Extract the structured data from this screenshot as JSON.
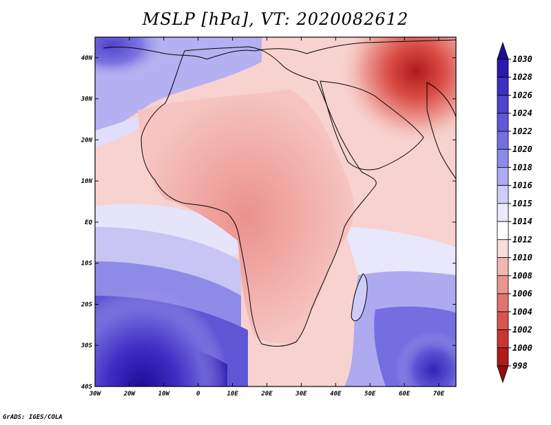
{
  "title": "MSLP [hPa], VT: 2020082612",
  "credit": "GrADS: IGES/COLA",
  "map": {
    "region": "Africa",
    "projection": "latlon",
    "lon_range": [
      -30,
      75
    ],
    "lat_range": [
      -40,
      45
    ],
    "lat_ticks": [
      {
        "lat": 40,
        "label": "40N"
      },
      {
        "lat": 30,
        "label": "30N"
      },
      {
        "lat": 20,
        "label": "20N"
      },
      {
        "lat": 10,
        "label": "10N"
      },
      {
        "lat": 0,
        "label": "EQ"
      },
      {
        "lat": -10,
        "label": "10S"
      },
      {
        "lat": -20,
        "label": "20S"
      },
      {
        "lat": -30,
        "label": "30S"
      },
      {
        "lat": -40,
        "label": "40S"
      }
    ],
    "lon_ticks": [
      {
        "lon": -30,
        "label": "30W"
      },
      {
        "lon": -20,
        "label": "20W"
      },
      {
        "lon": -10,
        "label": "10W"
      },
      {
        "lon": 0,
        "label": "0"
      },
      {
        "lon": 10,
        "label": "10E"
      },
      {
        "lon": 20,
        "label": "20E"
      },
      {
        "lon": 30,
        "label": "30E"
      },
      {
        "lon": 40,
        "label": "40E"
      },
      {
        "lon": 50,
        "label": "50E"
      },
      {
        "lon": 60,
        "label": "60E"
      },
      {
        "lon": 70,
        "label": "70E"
      }
    ]
  },
  "colorbar": {
    "levels": [
      "1030",
      "1028",
      "1026",
      "1024",
      "1022",
      "1020",
      "1018",
      "1016",
      "1015",
      "1014",
      "1012",
      "1010",
      "1008",
      "1006",
      "1004",
      "1002",
      "1000",
      "998"
    ],
    "colors": [
      "#1e0c96",
      "#2a1ab0",
      "#3d2ec4",
      "#4f44cc",
      "#6058d6",
      "#746ee0",
      "#8e8ae8",
      "#aeaaf0",
      "#cfcdf7",
      "#eceafb",
      "#ffffff",
      "#fbdedb",
      "#f4b6b2",
      "#ec9590",
      "#e27470",
      "#d85450",
      "#c93632",
      "#b01b1b",
      "#8c0f0f"
    ]
  }
}
